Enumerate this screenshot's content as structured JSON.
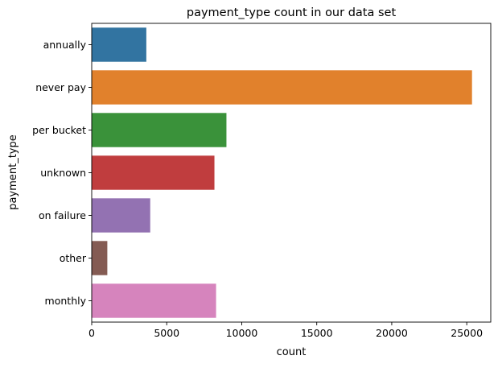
{
  "chart_data": {
    "type": "bar",
    "orientation": "horizontal",
    "title": "payment_type count in our data set",
    "xlabel": "count",
    "ylabel": "payment_type",
    "xlim": [
      0,
      26600
    ],
    "xticks": [
      0,
      5000,
      10000,
      15000,
      20000,
      25000
    ],
    "grid": false,
    "categories": [
      "annually",
      "never pay",
      "per bucket",
      "unknown",
      "on failure",
      "other",
      "monthly"
    ],
    "values": [
      3640,
      25350,
      8980,
      8180,
      3900,
      1040,
      8290
    ],
    "colors": [
      "#3274a1",
      "#e1812c",
      "#3a923a",
      "#c03d3e",
      "#9372b2",
      "#845b53",
      "#d684bd"
    ]
  }
}
